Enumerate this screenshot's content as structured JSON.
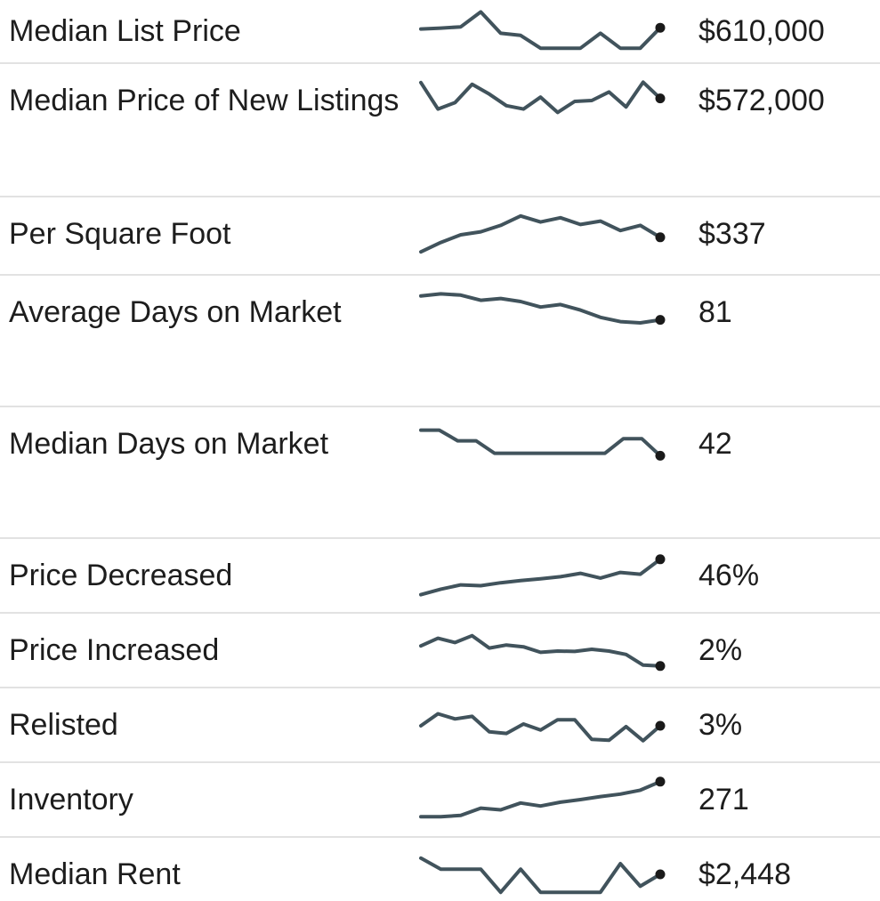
{
  "style": {
    "line_color": "#41535c",
    "dot_color": "#1a1a1a",
    "divider_color": "#e2e2e2",
    "text_color": "#1d1d1d",
    "background_color": "#ffffff"
  },
  "chart_data": [
    {
      "type": "line",
      "label": "Median List Price",
      "value": "$610,000",
      "sparkline": [
        55,
        57,
        60,
        95,
        45,
        40,
        10,
        10,
        10,
        45,
        10,
        10,
        58
      ]
    },
    {
      "type": "line",
      "label": "Median Price of New Listings",
      "value": "$572,000",
      "sparkline": [
        92,
        30,
        45,
        88,
        65,
        38,
        30,
        58,
        22,
        48,
        50,
        70,
        35,
        93,
        55
      ]
    },
    {
      "type": "line",
      "label": "Per Square Foot",
      "value": "$337",
      "sparkline": [
        8,
        30,
        48,
        55,
        70,
        92,
        78,
        88,
        72,
        80,
        58,
        70,
        42
      ]
    },
    {
      "type": "line",
      "label": "Average Days on Market",
      "value": "81",
      "sparkline": [
        88,
        93,
        90,
        78,
        82,
        75,
        62,
        68,
        55,
        38,
        28,
        25,
        32
      ]
    },
    {
      "type": "line",
      "label": "Median Days on Market",
      "value": "42",
      "sparkline": [
        82,
        82,
        57,
        57,
        28,
        28,
        28,
        28,
        28,
        28,
        28,
        62,
        62,
        22
      ]
    },
    {
      "type": "line",
      "label": "Price Decreased",
      "value": "46%",
      "sparkline": [
        5,
        18,
        28,
        26,
        33,
        38,
        42,
        47,
        55,
        44,
        57,
        53,
        88
      ]
    },
    {
      "type": "line",
      "label": "Price Increased",
      "value": "2%",
      "sparkline": [
        60,
        78,
        68,
        84,
        55,
        62,
        58,
        45,
        48,
        47,
        52,
        48,
        40,
        15,
        13
      ]
    },
    {
      "type": "line",
      "label": "Relisted",
      "value": "3%",
      "sparkline": [
        48,
        76,
        64,
        70,
        34,
        30,
        52,
        38,
        62,
        62,
        16,
        14,
        46,
        13,
        48
      ]
    },
    {
      "type": "line",
      "label": "Inventory",
      "value": "271",
      "sparkline": [
        10,
        10,
        13,
        30,
        26,
        42,
        35,
        44,
        50,
        57,
        63,
        72,
        92
      ]
    },
    {
      "type": "line",
      "label": "Median Rent",
      "value": "$2,448",
      "sparkline": [
        88,
        62,
        62,
        62,
        8,
        62,
        8,
        8,
        8,
        8,
        75,
        22,
        50
      ]
    }
  ]
}
